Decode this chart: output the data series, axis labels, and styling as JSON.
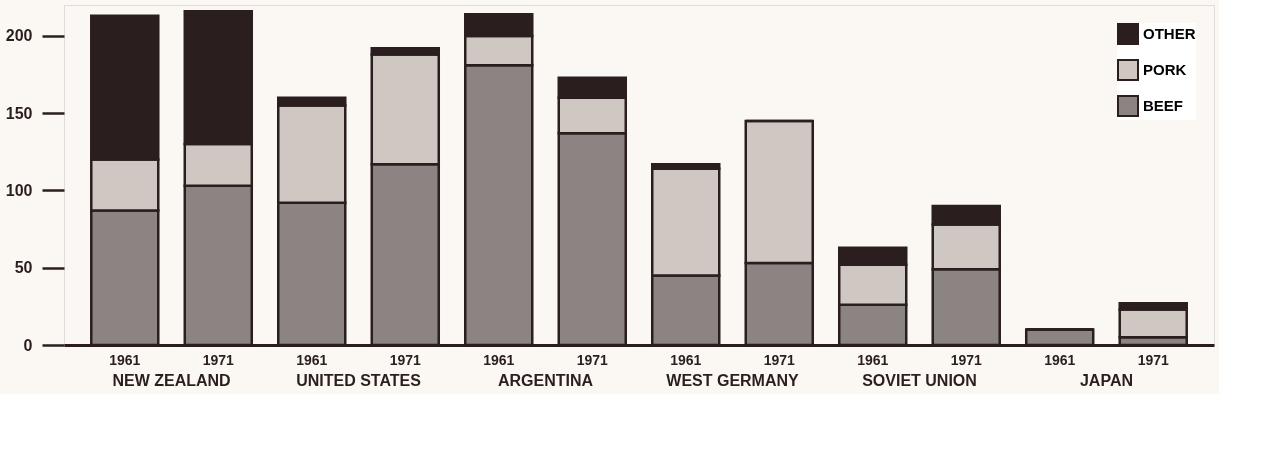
{
  "chart_data": {
    "type": "bar",
    "stacked": true,
    "categories": [
      "1961",
      "1971",
      "1961",
      "1971",
      "1961",
      "1971",
      "1961",
      "1971",
      "1961",
      "1971",
      "1961",
      "1971"
    ],
    "series": [
      {
        "name": "BEEF",
        "color": "#8c8383",
        "values": [
          87,
          103,
          92,
          117,
          181,
          137,
          45,
          53,
          26,
          49,
          10,
          5
        ]
      },
      {
        "name": "PORK",
        "color": "#cfc8c2",
        "values": [
          33,
          27,
          63,
          71,
          19,
          23,
          69,
          92,
          26,
          29,
          0,
          18
        ]
      },
      {
        "name": "OTHER",
        "color": "#2a1e1e",
        "values": [
          93,
          86,
          5,
          4,
          14,
          13,
          3,
          0,
          11,
          12,
          0,
          4
        ]
      }
    ],
    "ylim": [
      0,
      220
    ],
    "yticks": [
      0,
      50,
      100,
      150,
      200
    ],
    "grid": false,
    "legend": "top right",
    "annotations": [
      "NEW ZEALAND",
      "UNITED STATES",
      "ARGENTINA",
      "WEST GERMANY",
      "SOVIET UNION",
      "JAPAN"
    ]
  }
}
